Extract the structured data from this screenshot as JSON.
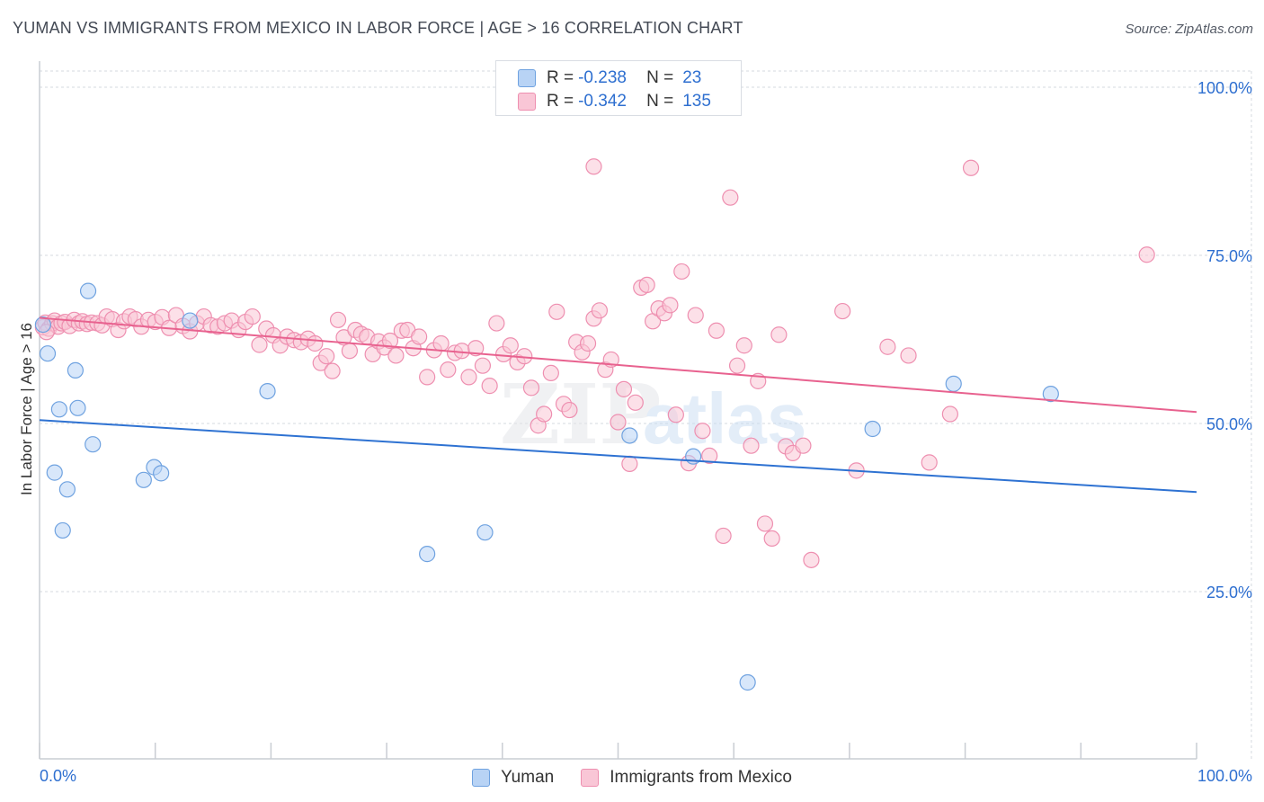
{
  "header": {
    "title": "YUMAN VS IMMIGRANTS FROM MEXICO IN LABOR FORCE | AGE > 16 CORRELATION CHART",
    "source": "Source: ZipAtlas.com"
  },
  "legend": {
    "r_label": "R =",
    "n_label": "N =",
    "rows": [
      {
        "series": "Yuman",
        "r": "-0.238",
        "n": "23"
      },
      {
        "series": "Immigrants from Mexico",
        "r": "-0.342",
        "n": "135"
      }
    ]
  },
  "watermark": {
    "zip": "ZIP",
    "atlas": "atlas"
  },
  "colors": {
    "yuman_fill": "#b8d3f5",
    "yuman_stroke": "#6fa2e0",
    "yuman_line": "#2e72d2",
    "mexico_fill": "#f9c6d6",
    "mexico_stroke": "#ee8fb0",
    "mexico_line": "#e8628f",
    "value_text": "#2e6fd0",
    "grid": "#d5d9df"
  },
  "chart_data": {
    "type": "scatter",
    "title": "YUMAN VS IMMIGRANTS FROM MEXICO IN LABOR FORCE | AGE > 16 CORRELATION CHART",
    "xlabel": "",
    "ylabel": "In Labor Force | Age > 16",
    "xlim": [
      0,
      100
    ],
    "ylim": [
      0,
      100
    ],
    "x_tick_labels": [
      "0.0%",
      "100.0%"
    ],
    "y_ticks": [
      {
        "value": 25,
        "label": "25.0%"
      },
      {
        "value": 50,
        "label": "50.0%"
      },
      {
        "value": 75,
        "label": "75.0%"
      },
      {
        "value": 100,
        "label": "100.0%"
      }
    ],
    "series": [
      {
        "name": "Yuman",
        "r": -0.238,
        "n": 23,
        "trend": {
          "x0": 0,
          "y0": 50.5,
          "x1": 100,
          "y1": 39.8
        },
        "points": [
          [
            0.3,
            64.7
          ],
          [
            0.7,
            60.4
          ],
          [
            1.7,
            52.1
          ],
          [
            1.3,
            42.7
          ],
          [
            2.4,
            40.2
          ],
          [
            2.0,
            34.1
          ],
          [
            3.1,
            57.9
          ],
          [
            3.3,
            52.3
          ],
          [
            4.2,
            69.7
          ],
          [
            4.6,
            46.9
          ],
          [
            9.0,
            41.6
          ],
          [
            9.9,
            43.5
          ],
          [
            10.5,
            42.6
          ],
          [
            13.0,
            65.3
          ],
          [
            19.7,
            54.8
          ],
          [
            33.5,
            30.6
          ],
          [
            38.5,
            33.8
          ],
          [
            51.0,
            48.2
          ],
          [
            56.5,
            45.1
          ],
          [
            61.2,
            11.5
          ],
          [
            72.0,
            49.2
          ],
          [
            79.0,
            55.9
          ],
          [
            87.4,
            54.4
          ]
        ]
      },
      {
        "name": "Immigrants from Mexico",
        "r": -0.342,
        "n": 135,
        "trend": {
          "x0": 0,
          "y0": 65.7,
          "x1": 100,
          "y1": 51.7
        },
        "points": [
          [
            0.3,
            64.3
          ],
          [
            0.5,
            65.0
          ],
          [
            0.8,
            64.1
          ],
          [
            1.1,
            64.9
          ],
          [
            1.3,
            65.3
          ],
          [
            1.6,
            64.4
          ],
          [
            1.9,
            64.9
          ],
          [
            2.2,
            65.1
          ],
          [
            2.6,
            64.5
          ],
          [
            3.0,
            65.4
          ],
          [
            3.4,
            64.9
          ],
          [
            3.7,
            65.2
          ],
          [
            4.1,
            64.8
          ],
          [
            4.5,
            65.0
          ],
          [
            5.0,
            64.9
          ],
          [
            5.4,
            64.6
          ],
          [
            5.8,
            65.9
          ],
          [
            6.3,
            65.5
          ],
          [
            6.8,
            63.9
          ],
          [
            7.3,
            65.2
          ],
          [
            7.8,
            65.9
          ],
          [
            8.3,
            65.5
          ],
          [
            8.8,
            64.4
          ],
          [
            9.4,
            65.4
          ],
          [
            10.0,
            65.1
          ],
          [
            10.6,
            65.8
          ],
          [
            11.2,
            64.2
          ],
          [
            11.8,
            66.1
          ],
          [
            12.4,
            64.5
          ],
          [
            13.0,
            63.7
          ],
          [
            13.6,
            64.9
          ],
          [
            14.2,
            65.9
          ],
          [
            14.8,
            64.6
          ],
          [
            15.4,
            64.4
          ],
          [
            16.0,
            64.9
          ],
          [
            16.6,
            65.3
          ],
          [
            17.2,
            63.9
          ],
          [
            17.8,
            65.1
          ],
          [
            18.4,
            65.9
          ],
          [
            19.0,
            61.7
          ],
          [
            19.6,
            64.1
          ],
          [
            20.2,
            63.1
          ],
          [
            20.8,
            61.6
          ],
          [
            21.4,
            62.9
          ],
          [
            22.0,
            62.4
          ],
          [
            22.6,
            62.1
          ],
          [
            23.2,
            62.6
          ],
          [
            23.8,
            61.9
          ],
          [
            24.3,
            59.0
          ],
          [
            24.8,
            60.0
          ],
          [
            25.3,
            57.8
          ],
          [
            25.8,
            65.4
          ],
          [
            26.3,
            62.8
          ],
          [
            26.8,
            60.8
          ],
          [
            27.3,
            63.9
          ],
          [
            27.8,
            63.3
          ],
          [
            28.3,
            62.9
          ],
          [
            28.8,
            60.3
          ],
          [
            29.3,
            62.2
          ],
          [
            29.8,
            61.3
          ],
          [
            30.3,
            62.3
          ],
          [
            30.8,
            60.1
          ],
          [
            31.3,
            63.8
          ],
          [
            31.8,
            63.9
          ],
          [
            32.3,
            61.2
          ],
          [
            32.8,
            62.9
          ],
          [
            33.5,
            56.9
          ],
          [
            34.1,
            60.9
          ],
          [
            34.7,
            61.9
          ],
          [
            35.3,
            58.0
          ],
          [
            35.9,
            60.5
          ],
          [
            36.5,
            60.8
          ],
          [
            37.1,
            56.9
          ],
          [
            37.7,
            61.2
          ],
          [
            38.3,
            58.6
          ],
          [
            38.9,
            55.6
          ],
          [
            39.5,
            64.9
          ],
          [
            40.1,
            60.3
          ],
          [
            40.7,
            61.6
          ],
          [
            41.3,
            59.1
          ],
          [
            41.9,
            60.0
          ],
          [
            42.5,
            55.3
          ],
          [
            43.1,
            49.7
          ],
          [
            43.6,
            51.4
          ],
          [
            44.2,
            57.5
          ],
          [
            44.7,
            66.6
          ],
          [
            45.3,
            52.9
          ],
          [
            45.8,
            52.0
          ],
          [
            46.4,
            62.1
          ],
          [
            46.9,
            60.6
          ],
          [
            47.4,
            61.9
          ],
          [
            47.9,
            65.6
          ],
          [
            48.4,
            66.8
          ],
          [
            48.9,
            58.0
          ],
          [
            49.4,
            59.5
          ],
          [
            50.0,
            50.2
          ],
          [
            50.5,
            55.1
          ],
          [
            51.0,
            44.0
          ],
          [
            51.5,
            53.1
          ],
          [
            52.0,
            70.2
          ],
          [
            52.5,
            70.6
          ],
          [
            53.0,
            65.2
          ],
          [
            53.5,
            67.1
          ],
          [
            54.0,
            66.4
          ],
          [
            54.5,
            67.6
          ],
          [
            55.0,
            51.3
          ],
          [
            55.5,
            72.6
          ],
          [
            56.1,
            44.1
          ],
          [
            56.7,
            66.1
          ],
          [
            57.3,
            48.9
          ],
          [
            57.9,
            45.2
          ],
          [
            58.5,
            63.8
          ],
          [
            59.1,
            33.3
          ],
          [
            59.7,
            83.6
          ],
          [
            60.3,
            58.6
          ],
          [
            60.9,
            61.6
          ],
          [
            61.5,
            46.7
          ],
          [
            62.1,
            56.3
          ],
          [
            62.7,
            35.1
          ],
          [
            63.3,
            32.9
          ],
          [
            63.9,
            63.2
          ],
          [
            64.5,
            46.6
          ],
          [
            65.1,
            45.6
          ],
          [
            66.0,
            46.7
          ],
          [
            66.7,
            29.7
          ],
          [
            69.4,
            66.7
          ],
          [
            70.6,
            43.0
          ],
          [
            73.3,
            61.4
          ],
          [
            75.1,
            60.1
          ],
          [
            76.9,
            44.2
          ],
          [
            78.7,
            51.4
          ],
          [
            80.5,
            88.0
          ],
          [
            47.9,
            88.2
          ],
          [
            95.7,
            75.1
          ],
          [
            0.6,
            63.6
          ]
        ]
      }
    ]
  }
}
